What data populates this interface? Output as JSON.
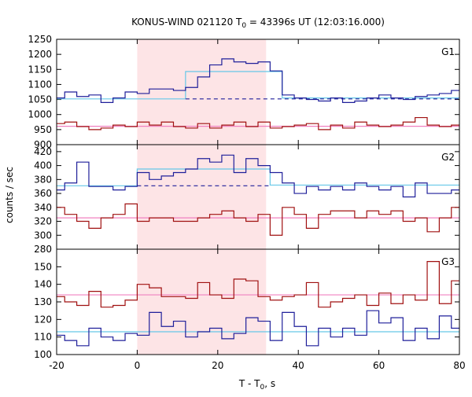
{
  "chart_data": {
    "type": "line",
    "title_prefix": "KONUS-WIND 021120 T",
    "title_sub": "0",
    "title_suffix": " = 43396s UT (12:03:16.000)",
    "xlabel_main": "T - T",
    "xlabel_sub": "0",
    "xlabel_tail": ", s",
    "ylabel": "counts / sec",
    "xlim": [
      -20,
      80
    ],
    "x_ticks": [
      -20,
      0,
      20,
      40,
      60,
      80
    ],
    "shaded_interval": [
      0,
      32
    ],
    "colors": {
      "lightcurve_blue": "#1f1f9a",
      "lightcurve_red": "#a01010",
      "fit_cyan": "#66c8e8",
      "fit_pink": "#f080c0",
      "shade": "#fde4e6"
    },
    "panels": [
      {
        "label": "G1",
        "ylim": [
          900,
          1250
        ],
        "y_ticks": [
          900,
          950,
          1000,
          1050,
          1100,
          1150,
          1200,
          1250
        ],
        "series": [
          {
            "color_key": "lightcurve_blue",
            "edges": [
              -20,
              -18,
              -15,
              -12,
              -9,
              -6,
              -3,
              0,
              3,
              6,
              9,
              12,
              15,
              18,
              21,
              24,
              27,
              30,
              33,
              36,
              39,
              42,
              45,
              48,
              51,
              54,
              57,
              60,
              63,
              66,
              69,
              72,
              75,
              78,
              80
            ],
            "values": [
              1055,
              1075,
              1060,
              1065,
              1040,
              1055,
              1075,
              1070,
              1085,
              1085,
              1080,
              1090,
              1125,
              1165,
              1185,
              1175,
              1170,
              1175,
              1145,
              1065,
              1055,
              1050,
              1045,
              1055,
              1040,
              1045,
              1055,
              1065,
              1055,
              1050,
              1060,
              1065,
              1070,
              1080
            ]
          },
          {
            "color_key": "lightcurve_red",
            "edges": [
              -20,
              -18,
              -15,
              -12,
              -9,
              -6,
              -3,
              0,
              3,
              6,
              9,
              12,
              15,
              18,
              21,
              24,
              27,
              30,
              33,
              36,
              39,
              42,
              45,
              48,
              51,
              54,
              57,
              60,
              63,
              66,
              69,
              72,
              75,
              78,
              80
            ],
            "values": [
              970,
              975,
              960,
              950,
              955,
              965,
              960,
              975,
              965,
              975,
              960,
              955,
              970,
              955,
              965,
              975,
              960,
              975,
              955,
              960,
              965,
              970,
              950,
              965,
              955,
              975,
              965,
              960,
              965,
              975,
              990,
              965,
              960,
              965
            ]
          }
        ],
        "fits": [
          {
            "color_key": "fit_cyan",
            "style": "solid",
            "points": [
              [
                -20,
                1052
              ],
              [
                12,
                1052
              ]
            ]
          },
          {
            "color_key": "fit_cyan",
            "style": "solid",
            "points": [
              [
                12,
                1052
              ],
              [
                12,
                1143
              ],
              [
                36,
                1143
              ],
              [
                36,
                1055
              ],
              [
                80,
                1055
              ]
            ]
          },
          {
            "color_key": "lightcurve_blue",
            "style": "dashed",
            "points": [
              [
                12,
                1052
              ],
              [
                80,
                1052
              ]
            ]
          },
          {
            "color_key": "fit_pink",
            "style": "solid",
            "points": [
              [
                -20,
                961
              ],
              [
                80,
                961
              ]
            ]
          }
        ]
      },
      {
        "label": "G2",
        "ylim": [
          280,
          430
        ],
        "y_ticks": [
          280,
          300,
          320,
          340,
          360,
          380,
          400,
          420
        ],
        "series": [
          {
            "color_key": "lightcurve_blue",
            "edges": [
              -20,
              -18,
              -15,
              -12,
              -9,
              -6,
              -3,
              0,
              3,
              6,
              9,
              12,
              15,
              18,
              21,
              24,
              27,
              30,
              33,
              36,
              39,
              42,
              45,
              48,
              51,
              54,
              57,
              60,
              63,
              66,
              69,
              72,
              75,
              78,
              80
            ],
            "values": [
              365,
              375,
              405,
              370,
              370,
              365,
              370,
              390,
              380,
              385,
              390,
              395,
              410,
              405,
              415,
              390,
              410,
              400,
              390,
              375,
              360,
              370,
              365,
              370,
              365,
              375,
              370,
              365,
              370,
              355,
              375,
              360,
              360,
              365
            ]
          },
          {
            "color_key": "lightcurve_red",
            "edges": [
              -20,
              -18,
              -15,
              -12,
              -9,
              -6,
              -3,
              0,
              3,
              6,
              9,
              12,
              15,
              18,
              21,
              24,
              27,
              30,
              33,
              36,
              39,
              42,
              45,
              48,
              51,
              54,
              57,
              60,
              63,
              66,
              69,
              72,
              75,
              78,
              80
            ],
            "values": [
              340,
              330,
              320,
              310,
              325,
              330,
              345,
              320,
              325,
              325,
              320,
              320,
              325,
              330,
              335,
              325,
              320,
              330,
              300,
              340,
              330,
              310,
              330,
              335,
              335,
              325,
              335,
              330,
              335,
              320,
              325,
              305,
              325,
              340
            ]
          }
        ],
        "fits": [
          {
            "color_key": "fit_cyan",
            "style": "solid",
            "points": [
              [
                -20,
                371
              ],
              [
                0,
                371
              ],
              [
                0,
                395
              ],
              [
                33,
                395
              ],
              [
                33,
                372
              ],
              [
                80,
                372
              ]
            ]
          },
          {
            "color_key": "lightcurve_blue",
            "style": "dashed",
            "points": [
              [
                0,
                371
              ],
              [
                33,
                371
              ]
            ]
          },
          {
            "color_key": "fit_pink",
            "style": "solid",
            "points": [
              [
                -20,
                325
              ],
              [
                80,
                325
              ]
            ]
          }
        ]
      },
      {
        "label": "G3",
        "ylim": [
          100,
          160
        ],
        "y_ticks": [
          100,
          110,
          120,
          130,
          140,
          150
        ],
        "series": [
          {
            "color_key": "lightcurve_blue",
            "edges": [
              -20,
              -18,
              -15,
              -12,
              -9,
              -6,
              -3,
              0,
              3,
              6,
              9,
              12,
              15,
              18,
              21,
              24,
              27,
              30,
              33,
              36,
              39,
              42,
              45,
              48,
              51,
              54,
              57,
              60,
              63,
              66,
              69,
              72,
              75,
              78,
              80
            ],
            "values": [
              111,
              108,
              105,
              115,
              110,
              108,
              112,
              111,
              124,
              116,
              119,
              110,
              113,
              115,
              109,
              112,
              121,
              119,
              108,
              124,
              116,
              105,
              115,
              110,
              115,
              111,
              125,
              118,
              121,
              108,
              115,
              109,
              122,
              115
            ]
          },
          {
            "color_key": "lightcurve_red",
            "edges": [
              -20,
              -18,
              -15,
              -12,
              -9,
              -6,
              -3,
              0,
              3,
              6,
              9,
              12,
              15,
              18,
              21,
              24,
              27,
              30,
              33,
              36,
              39,
              42,
              45,
              48,
              51,
              54,
              57,
              60,
              63,
              66,
              69,
              72,
              75,
              78,
              80
            ],
            "values": [
              133,
              130,
              128,
              136,
              127,
              128,
              131,
              140,
              138,
              133,
              133,
              132,
              141,
              134,
              132,
              143,
              142,
              133,
              131,
              133,
              134,
              141,
              127,
              130,
              132,
              134,
              128,
              135,
              129,
              134,
              131,
              153,
              129,
              142
            ]
          }
        ],
        "fits": [
          {
            "color_key": "fit_pink",
            "style": "solid",
            "points": [
              [
                -20,
                134
              ],
              [
                80,
                134
              ]
            ]
          },
          {
            "color_key": "fit_cyan",
            "style": "solid",
            "points": [
              [
                -20,
                113
              ],
              [
                80,
                113
              ]
            ]
          }
        ]
      }
    ]
  }
}
